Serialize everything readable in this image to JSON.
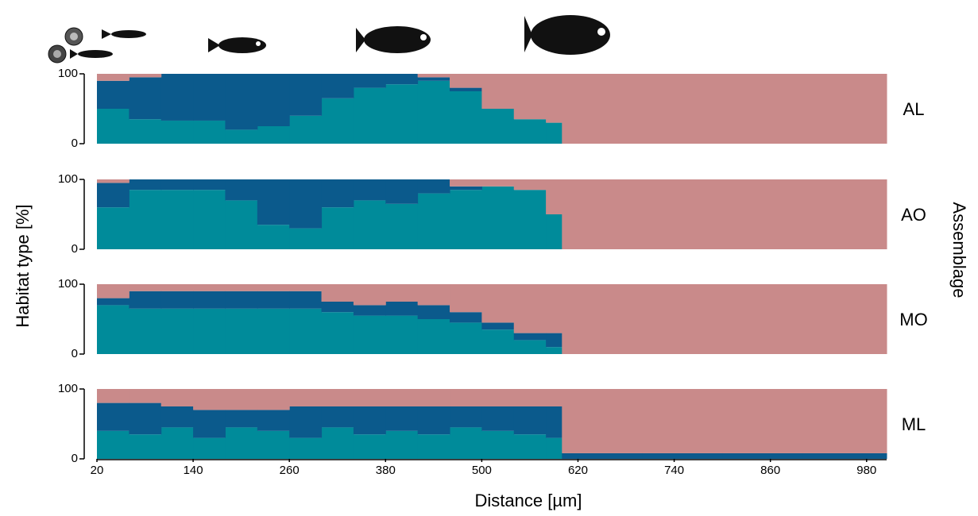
{
  "chart_data": [
    {
      "type": "stacked_bar",
      "title": "AL",
      "ylabel": "Habitat type [%]",
      "right_label": "Assemblage",
      "x": [
        20,
        60,
        100,
        140,
        180,
        220,
        260,
        300,
        340,
        380,
        420,
        460,
        500,
        540,
        580,
        600,
        700,
        800,
        900
      ],
      "xlim": [
        20,
        1005
      ],
      "ylim": [
        0,
        100
      ],
      "yticks": [
        0,
        100
      ],
      "series": [
        {
          "color": "#008b9a",
          "values": [
            50,
            35,
            33,
            33,
            20,
            25,
            40,
            65,
            80,
            85,
            90,
            75,
            50,
            35,
            30,
            0,
            0,
            0,
            0
          ]
        },
        {
          "color": "#0b5a8c",
          "values": [
            40,
            60,
            67,
            67,
            80,
            75,
            60,
            35,
            20,
            15,
            5,
            5,
            0,
            0,
            0,
            0,
            0,
            0,
            0
          ]
        },
        {
          "color": "#c98a8a",
          "values": [
            10,
            5,
            0,
            0,
            0,
            0,
            0,
            0,
            0,
            0,
            5,
            20,
            50,
            65,
            70,
            100,
            100,
            100,
            100
          ]
        }
      ]
    },
    {
      "type": "stacked_bar",
      "title": "AO",
      "x": [
        20,
        60,
        100,
        140,
        180,
        220,
        260,
        300,
        340,
        380,
        420,
        460,
        500,
        540,
        580,
        600,
        700,
        800,
        900
      ],
      "xlim": [
        20,
        1005
      ],
      "ylim": [
        0,
        100
      ],
      "yticks": [
        0,
        100
      ],
      "series": [
        {
          "color": "#008b9a",
          "values": [
            60,
            85,
            85,
            85,
            70,
            35,
            30,
            60,
            70,
            65,
            80,
            85,
            90,
            85,
            50,
            0,
            0,
            0,
            0
          ]
        },
        {
          "color": "#0b5a8c",
          "values": [
            35,
            15,
            15,
            15,
            30,
            65,
            70,
            40,
            30,
            35,
            20,
            5,
            0,
            0,
            0,
            0,
            0,
            0,
            0
          ]
        },
        {
          "color": "#c98a8a",
          "values": [
            5,
            0,
            0,
            0,
            0,
            0,
            0,
            0,
            0,
            0,
            0,
            10,
            10,
            15,
            50,
            100,
            100,
            100,
            100
          ]
        }
      ]
    },
    {
      "type": "stacked_bar",
      "title": "MO",
      "x": [
        20,
        60,
        100,
        140,
        180,
        220,
        260,
        300,
        340,
        380,
        420,
        460,
        500,
        540,
        580,
        600,
        700,
        800,
        900
      ],
      "xlim": [
        20,
        1005
      ],
      "ylim": [
        0,
        100
      ],
      "yticks": [
        0,
        100
      ],
      "series": [
        {
          "color": "#008b9a",
          "values": [
            70,
            65,
            65,
            65,
            65,
            65,
            65,
            60,
            55,
            55,
            50,
            45,
            35,
            20,
            10,
            0,
            0,
            0,
            0
          ]
        },
        {
          "color": "#0b5a8c",
          "values": [
            10,
            25,
            25,
            25,
            25,
            25,
            25,
            15,
            15,
            20,
            20,
            15,
            10,
            10,
            20,
            0,
            0,
            0,
            0
          ]
        },
        {
          "color": "#c98a8a",
          "values": [
            20,
            10,
            10,
            10,
            10,
            10,
            10,
            25,
            30,
            25,
            30,
            40,
            55,
            70,
            70,
            100,
            100,
            100,
            100
          ]
        }
      ]
    },
    {
      "type": "stacked_bar",
      "title": "ML",
      "xlabel": "Distance [µm]",
      "x": [
        20,
        60,
        100,
        140,
        180,
        220,
        260,
        300,
        340,
        380,
        420,
        460,
        500,
        540,
        580,
        600,
        700,
        800,
        900
      ],
      "xlim": [
        20,
        1005
      ],
      "ylim": [
        0,
        100
      ],
      "yticks": [
        0,
        100
      ],
      "xticks": [
        20,
        140,
        260,
        380,
        500,
        620,
        740,
        860,
        980
      ],
      "series": [
        {
          "color": "#008b9a",
          "values": [
            40,
            35,
            45,
            30,
            45,
            40,
            30,
            45,
            35,
            40,
            35,
            45,
            40,
            35,
            30,
            0,
            0,
            0,
            0
          ]
        },
        {
          "color": "#0b5a8c",
          "values": [
            40,
            45,
            30,
            40,
            25,
            30,
            45,
            30,
            40,
            35,
            40,
            30,
            35,
            40,
            45,
            8,
            8,
            8,
            8
          ]
        },
        {
          "color": "#c98a8a",
          "values": [
            20,
            20,
            25,
            30,
            30,
            30,
            25,
            25,
            25,
            25,
            25,
            25,
            25,
            25,
            25,
            92,
            92,
            92,
            92
          ]
        }
      ]
    }
  ]
}
